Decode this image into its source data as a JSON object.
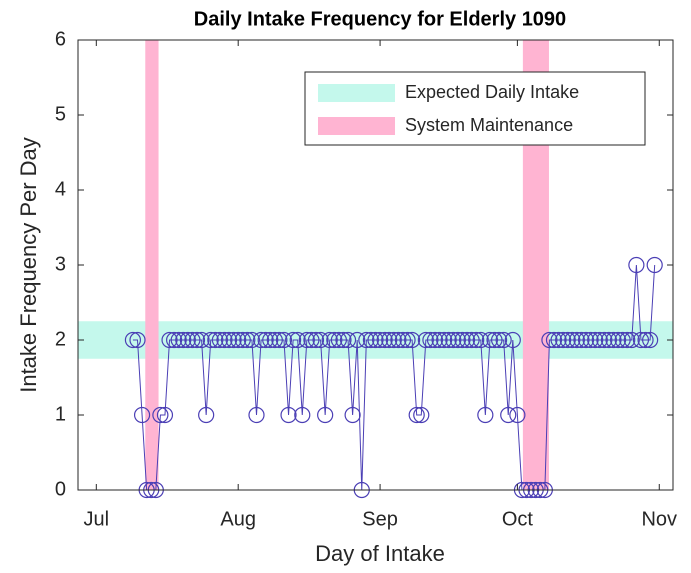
{
  "chart_data": {
    "type": "line",
    "title": "Daily Intake Frequency for Elderly 1090",
    "x_label": "Day of Intake",
    "y_label": "Intake Frequency Per Day",
    "xlim": [
      -4,
      126
    ],
    "xticks": [
      {
        "value": 0,
        "label": "Jul"
      },
      {
        "value": 31,
        "label": "Aug"
      },
      {
        "value": 62,
        "label": "Sep"
      },
      {
        "value": 92,
        "label": "Oct"
      },
      {
        "value": 123,
        "label": "Nov"
      }
    ],
    "ylim": [
      0,
      6
    ],
    "yticks": [
      0,
      1,
      2,
      3,
      4,
      5,
      6
    ],
    "legend_position": "top-right",
    "bands": [
      {
        "name": "Expected Daily Intake",
        "color": "#c4f8ec",
        "axis": "y",
        "ranges": [
          [
            1.75,
            2.25
          ]
        ]
      },
      {
        "name": "System Maintenance",
        "color": "#ffb4d2",
        "axis": "x",
        "ranges": [
          [
            10.7,
            13.6
          ],
          [
            93.2,
            98.9
          ]
        ]
      }
    ],
    "series": [
      {
        "color": "#4b3fb5",
        "marker": "circle",
        "x": [
          8,
          9,
          10,
          11,
          12,
          13,
          14,
          15,
          16,
          17,
          18,
          19,
          20,
          21,
          22,
          23,
          24,
          25,
          26,
          27,
          28,
          29,
          30,
          31,
          32,
          33,
          34,
          35,
          36,
          37,
          38,
          39,
          40,
          41,
          42,
          43,
          44,
          45,
          46,
          47,
          48,
          49,
          50,
          51,
          52,
          53,
          54,
          55,
          56,
          57,
          58,
          59,
          60,
          61,
          62,
          63,
          64,
          65,
          66,
          67,
          68,
          69,
          70,
          71,
          72,
          73,
          74,
          75,
          76,
          77,
          78,
          79,
          80,
          81,
          82,
          83,
          84,
          85,
          86,
          87,
          88,
          89,
          90,
          91,
          92,
          93,
          94,
          95,
          96,
          97,
          98,
          99,
          100,
          101,
          102,
          103,
          104,
          105,
          106,
          107,
          108,
          109,
          110,
          111,
          112,
          113,
          114,
          115,
          116,
          117,
          118,
          119,
          120,
          121,
          122
        ],
        "values": [
          2,
          2,
          1,
          0,
          0,
          0,
          1,
          1,
          2,
          2,
          2,
          2,
          2,
          2,
          2,
          2,
          1,
          2,
          2,
          2,
          2,
          2,
          2,
          2,
          2,
          2,
          2,
          1,
          2,
          2,
          2,
          2,
          2,
          2,
          1,
          2,
          2,
          1,
          2,
          2,
          2,
          2,
          1,
          2,
          2,
          2,
          2,
          2,
          1,
          2,
          0,
          2,
          2,
          2,
          2,
          2,
          2,
          2,
          2,
          2,
          2,
          2,
          1,
          1,
          2,
          2,
          2,
          2,
          2,
          2,
          2,
          2,
          2,
          2,
          2,
          2,
          2,
          1,
          2,
          2,
          2,
          2,
          1,
          2,
          1,
          0,
          0,
          0,
          0,
          0,
          0,
          2,
          2,
          2,
          2,
          2,
          2,
          2,
          2,
          2,
          2,
          2,
          2,
          2,
          2,
          2,
          2,
          2,
          2,
          2,
          3,
          2,
          2,
          2,
          3
        ]
      }
    ]
  }
}
